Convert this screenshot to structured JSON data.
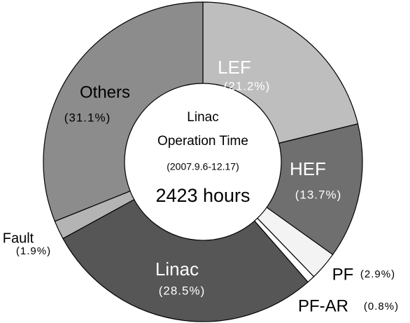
{
  "chart_data": {
    "type": "donut",
    "categories": [
      "LEF",
      "HEF",
      "PF",
      "PF-AR",
      "Linac",
      "Fault",
      "Others"
    ],
    "values": [
      21.2,
      13.7,
      2.9,
      0.8,
      28.5,
      1.9,
      31.1
    ],
    "value_labels": [
      "(21.2%)",
      "(13.7%)",
      "(2.9%)",
      "(0.8%)",
      "(28.5%)",
      "(1.9%)",
      "(31.1%)"
    ],
    "colors": [
      "#bebebe",
      "#6f6f6f",
      "#f3f3f3",
      "#ffffff",
      "#565656",
      "#b4b4b4",
      "#8c8c8c"
    ],
    "center_text": [
      "Linac",
      "Operation Time",
      "(2007.9.6-12.17)",
      "2423 hours"
    ]
  }
}
